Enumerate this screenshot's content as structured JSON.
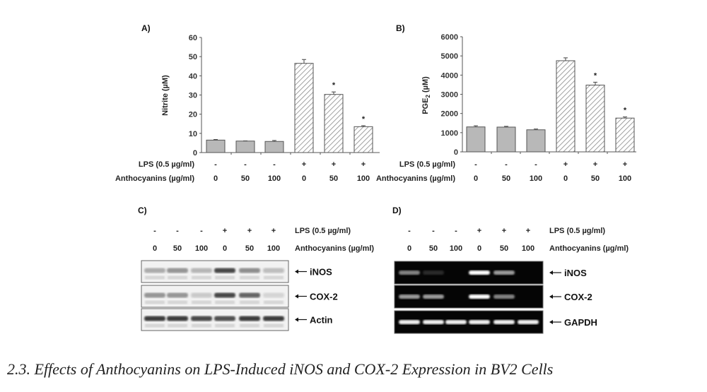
{
  "panels": {
    "a": "A)",
    "b": "B)",
    "c": "C)",
    "d": "D)"
  },
  "row_labels": {
    "lps": "LPS (0.5 µg/ml)",
    "antho": "Anthocyanins (µg/ml)"
  },
  "lps": [
    "-",
    "-",
    "-",
    "+",
    "+",
    "+"
  ],
  "antho": [
    "0",
    "50",
    "100",
    "0",
    "50",
    "100"
  ],
  "chart_data": [
    {
      "type": "bar",
      "title": "A)",
      "ylabel": "Nitrite (µM)",
      "ylim": [
        0,
        60
      ],
      "yticks": [
        0,
        10,
        20,
        30,
        40,
        50,
        60
      ],
      "categories": [
        "- / 0",
        "- / 50",
        "- / 100",
        "+ / 0",
        "+ / 50",
        "+ / 100"
      ],
      "values": [
        6.5,
        6.0,
        5.8,
        46.5,
        30.3,
        13.5
      ],
      "errors": [
        0.3,
        0.1,
        0.5,
        2.0,
        1.3,
        0.5
      ],
      "significant": [
        false,
        false,
        false,
        false,
        true,
        true
      ],
      "significance_mark": "*",
      "fill": [
        "solid",
        "solid",
        "solid",
        "hatched",
        "hatched",
        "hatched"
      ]
    },
    {
      "type": "bar",
      "title": "B)",
      "ylabel_main": "PGE",
      "ylabel_sub": "2",
      "ylabel_unit": " (µM)",
      "ylim": [
        0,
        6000
      ],
      "yticks": [
        0,
        1000,
        2000,
        3000,
        4000,
        5000,
        6000
      ],
      "categories": [
        "- / 0",
        "- / 50",
        "- / 100",
        "+ / 0",
        "+ / 50",
        "+ / 100"
      ],
      "values": [
        1300,
        1290,
        1150,
        4750,
        3480,
        1760
      ],
      "errors": [
        60,
        40,
        40,
        150,
        150,
        60
      ],
      "significant": [
        false,
        false,
        false,
        false,
        true,
        true
      ],
      "significance_mark": "*",
      "fill": [
        "solid",
        "solid",
        "solid",
        "hatched",
        "hatched",
        "hatched"
      ]
    }
  ],
  "blots": {
    "c": {
      "rows": [
        {
          "label": "iNOS",
          "intensity": [
            0.35,
            0.45,
            0.3,
            0.85,
            0.5,
            0.25
          ]
        },
        {
          "label": "COX-2",
          "intensity": [
            0.45,
            0.45,
            0.2,
            0.85,
            0.7,
            0.15
          ]
        },
        {
          "label": "Actin",
          "intensity": [
            0.9,
            0.9,
            0.85,
            0.8,
            0.9,
            0.9
          ]
        }
      ]
    },
    "d": {
      "rows": [
        {
          "label": "iNOS",
          "intensity": [
            0.5,
            0.15,
            0,
            1,
            0.6,
            0
          ]
        },
        {
          "label": "COX-2",
          "intensity": [
            0.6,
            0.6,
            0,
            1,
            0.5,
            0
          ]
        },
        {
          "label": "GAPDH",
          "intensity": [
            0.95,
            0.95,
            0.95,
            0.95,
            0.95,
            0.95
          ]
        }
      ]
    }
  },
  "caption": "2.3. Effects of Anthocyanins on LPS-Induced iNOS and COX-2 Expression in BV2 Cells"
}
